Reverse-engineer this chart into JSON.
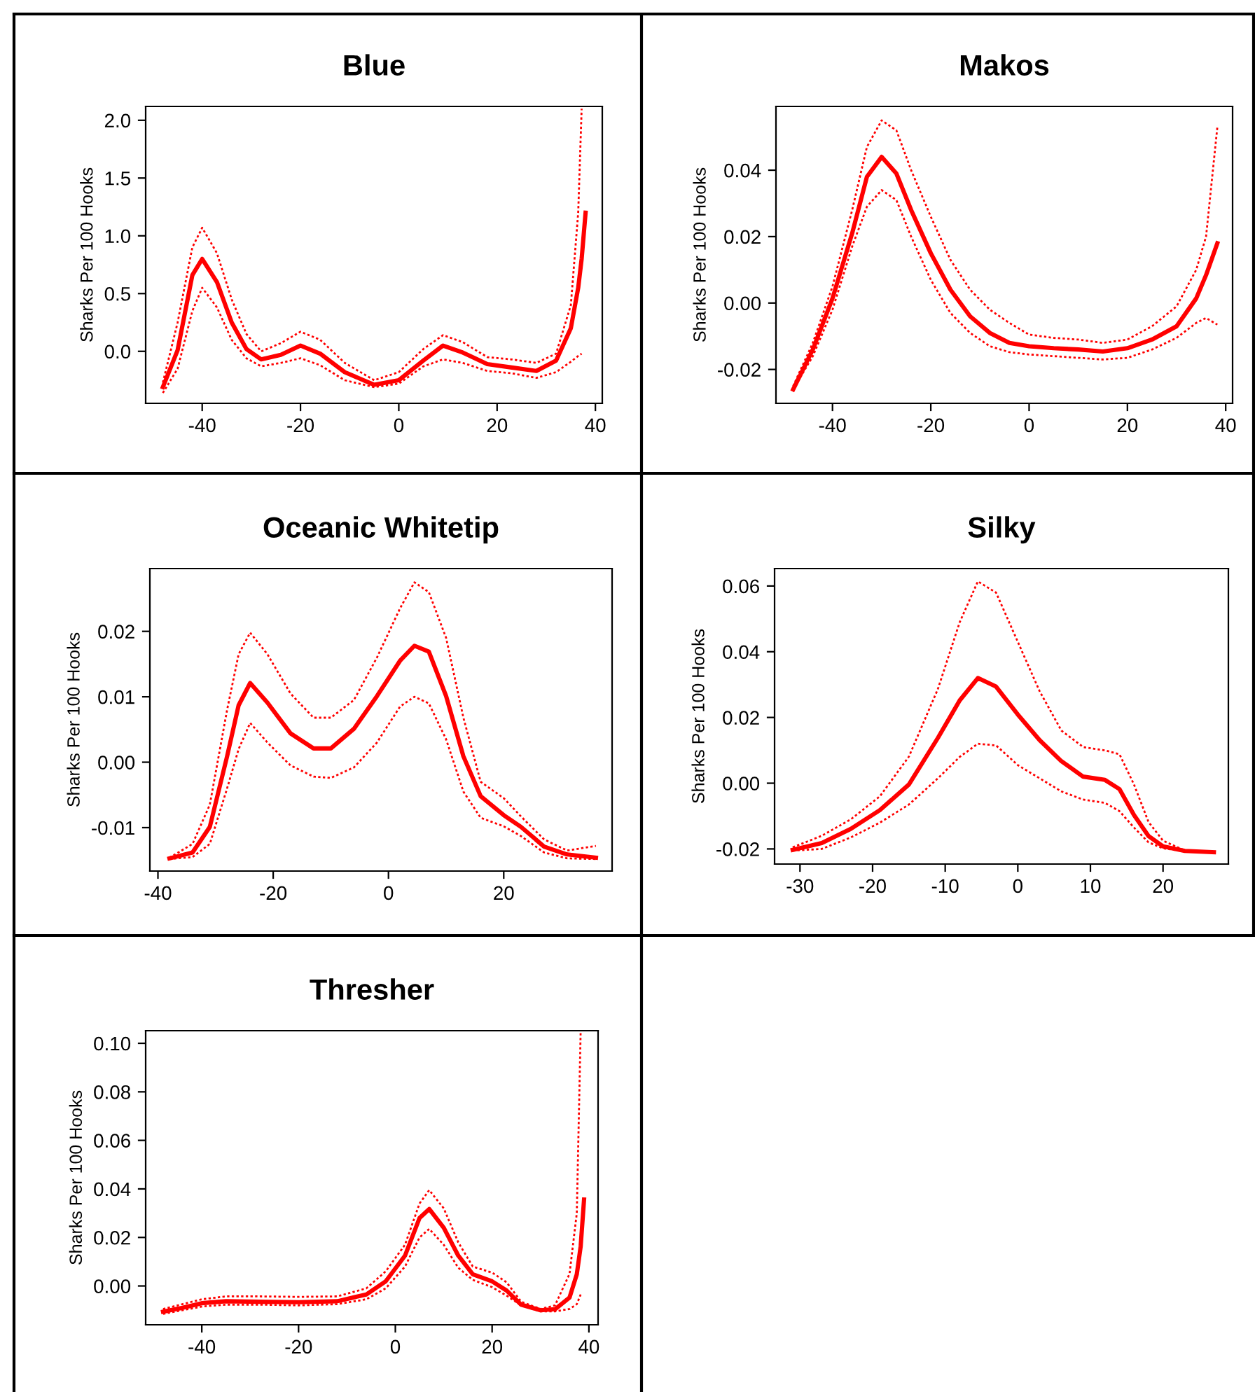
{
  "chart_data": [
    {
      "type": "line",
      "title": "Blue",
      "ylabel": "Sharks Per 100 Hooks",
      "xlim": [
        -51.5,
        41.4
      ],
      "ylim": [
        -0.45,
        2.12
      ],
      "xticks": [
        -40,
        -20,
        0,
        20,
        40
      ],
      "yticks": [
        {
          "value": 0,
          "label": "0.0"
        },
        {
          "value": 0.5,
          "label": "0.5"
        },
        {
          "value": 1,
          "label": "1.0"
        },
        {
          "value": 1.5,
          "label": "1.5"
        },
        {
          "value": 2,
          "label": "2.0"
        }
      ],
      "x": [
        -48,
        -45,
        -42,
        -40,
        -37,
        -34,
        -31,
        -28,
        -24,
        -20,
        -16,
        -11,
        -5,
        0,
        5,
        9,
        13,
        18,
        23,
        28,
        32,
        35,
        36.5,
        37.2,
        38
      ],
      "series": [
        {
          "color": "#ff0000",
          "line_style": "solid",
          "values": [
            -0.31,
            0.01,
            0.66,
            0.8,
            0.6,
            0.25,
            0.02,
            -0.07,
            -0.03,
            0.05,
            -0.02,
            -0.18,
            -0.29,
            -0.25,
            -0.08,
            0.05,
            -0.01,
            -0.11,
            -0.14,
            -0.17,
            -0.08,
            0.2,
            0.55,
            0.8,
            1.2
          ]
        },
        {
          "color": "#ff0000",
          "line_style": "dotted",
          "values": [
            -0.27,
            0.25,
            0.9,
            1.07,
            0.85,
            0.45,
            0.15,
            0.0,
            0.07,
            0.17,
            0.1,
            -0.1,
            -0.25,
            -0.18,
            0.02,
            0.14,
            0.08,
            -0.05,
            -0.07,
            -0.1,
            -0.02,
            0.4,
            1.2,
            2.1,
            null
          ]
        },
        {
          "color": "#ff0000",
          "line_style": "dotted",
          "values": [
            -0.36,
            -0.15,
            0.35,
            0.55,
            0.38,
            0.1,
            -0.06,
            -0.13,
            -0.1,
            -0.06,
            -0.12,
            -0.25,
            -0.31,
            -0.28,
            -0.13,
            -0.07,
            -0.1,
            -0.17,
            -0.19,
            -0.23,
            -0.18,
            -0.09,
            -0.04,
            -0.02,
            null
          ]
        }
      ]
    },
    {
      "type": "line",
      "title": "Makos",
      "ylabel": "Sharks Per 100 Hooks",
      "xlim": [
        -51.5,
        41.4
      ],
      "ylim": [
        -0.0302,
        0.0592
      ],
      "xticks": [
        -40,
        -20,
        0,
        20,
        40
      ],
      "yticks": [
        {
          "value": -0.02,
          "label": "-0.02"
        },
        {
          "value": 0,
          "label": "0.00"
        },
        {
          "value": 0.02,
          "label": "0.02"
        },
        {
          "value": 0.04,
          "label": "0.04"
        }
      ],
      "x": [
        -48,
        -44,
        -40,
        -36,
        -33,
        -30,
        -27,
        -24,
        -20,
        -16,
        -12,
        -8,
        -4,
        0,
        5,
        10,
        15,
        20,
        25,
        30,
        34,
        36,
        38.3
      ],
      "series": [
        {
          "color": "#ff0000",
          "line_style": "solid",
          "values": [
            -0.026,
            -0.014,
            0.0014,
            0.021,
            0.038,
            0.044,
            0.039,
            0.028,
            0.015,
            0.004,
            -0.004,
            -0.009,
            -0.012,
            -0.013,
            -0.0136,
            -0.014,
            -0.0146,
            -0.0136,
            -0.011,
            -0.007,
            0.0014,
            0.0084,
            0.018
          ]
        },
        {
          "color": "#ff0000",
          "line_style": "dotted",
          "values": [
            -0.025,
            -0.012,
            0.005,
            0.028,
            0.047,
            0.055,
            0.052,
            0.04,
            0.026,
            0.013,
            0.004,
            -0.002,
            -0.006,
            -0.0095,
            -0.0105,
            -0.011,
            -0.012,
            -0.011,
            -0.007,
            -0.001,
            0.01,
            0.02,
            0.053
          ]
        },
        {
          "color": "#ff0000",
          "line_style": "dotted",
          "values": [
            -0.026,
            -0.016,
            -0.002,
            0.017,
            0.029,
            0.034,
            0.031,
            0.02,
            0.007,
            -0.003,
            -0.009,
            -0.013,
            -0.0148,
            -0.0155,
            -0.016,
            -0.0165,
            -0.017,
            -0.0165,
            -0.014,
            -0.0105,
            -0.006,
            -0.0045,
            -0.0065
          ]
        }
      ]
    },
    {
      "type": "line",
      "title": "Oceanic Whitetip",
      "ylabel": "Sharks Per 100 Hooks",
      "xlim": [
        -41.4,
        38.8
      ],
      "ylim": [
        -0.01664,
        0.0296
      ],
      "xticks": [
        -40,
        -20,
        0,
        20
      ],
      "yticks": [
        {
          "value": -0.01,
          "label": "-0.01"
        },
        {
          "value": 0,
          "label": "0.00"
        },
        {
          "value": 0.01,
          "label": "0.01"
        },
        {
          "value": 0.02,
          "label": "0.02"
        }
      ],
      "x": [
        -38,
        -34,
        -31,
        -28,
        -26,
        -24,
        -21,
        -17,
        -13,
        -10,
        -6,
        -2,
        2,
        4.5,
        7,
        10,
        13,
        16,
        20,
        23,
        27,
        31,
        36
      ],
      "series": [
        {
          "color": "#ff0000",
          "line_style": "solid",
          "values": [
            -0.0147,
            -0.0138,
            -0.0099,
            0.0009,
            0.0087,
            0.0121,
            0.0091,
            0.0044,
            0.0021,
            0.0021,
            0.0051,
            0.0101,
            0.0155,
            0.0178,
            0.0169,
            0.0101,
            0.0009,
            -0.0052,
            -0.0081,
            -0.0099,
            -0.0129,
            -0.0141,
            -0.0146
          ]
        },
        {
          "color": "#ff0000",
          "line_style": "dotted",
          "values": [
            -0.0146,
            -0.0125,
            -0.0065,
            0.008,
            0.0165,
            0.0198,
            0.0165,
            0.0105,
            0.0068,
            0.0068,
            0.0095,
            0.016,
            0.0235,
            0.0275,
            0.026,
            0.019,
            0.0068,
            -0.003,
            -0.0055,
            -0.0083,
            -0.0118,
            -0.0135,
            -0.0128
          ]
        },
        {
          "color": "#ff0000",
          "line_style": "dotted",
          "values": [
            -0.0148,
            -0.0145,
            -0.0125,
            -0.004,
            0.002,
            0.006,
            0.003,
            -0.0005,
            -0.0022,
            -0.0024,
            -0.0008,
            0.003,
            0.0085,
            0.01,
            0.009,
            0.0035,
            -0.0045,
            -0.0085,
            -0.0098,
            -0.0113,
            -0.0138,
            -0.0147,
            -0.0148
          ]
        }
      ]
    },
    {
      "type": "line",
      "title": "Silky",
      "ylabel": "Sharks Per 100 Hooks",
      "xlim": [
        -33.5,
        29.0
      ],
      "ylim": [
        -0.0246,
        0.0653
      ],
      "xticks": [
        -30,
        -20,
        -10,
        0,
        10,
        20
      ],
      "yticks": [
        {
          "value": -0.02,
          "label": "-0.02"
        },
        {
          "value": 0,
          "label": "0.00"
        },
        {
          "value": 0.02,
          "label": "0.02"
        },
        {
          "value": 0.04,
          "label": "0.04"
        },
        {
          "value": 0.06,
          "label": "0.06"
        }
      ],
      "x": [
        -31,
        -27,
        -23,
        -19,
        -15,
        -11,
        -8,
        -5.5,
        -3,
        0,
        3,
        6,
        9,
        12,
        14,
        16,
        18,
        20,
        23,
        27
      ],
      "series": [
        {
          "color": "#ff0000",
          "line_style": "solid",
          "values": [
            -0.0203,
            -0.0182,
            -0.0139,
            -0.0082,
            -0.0004,
            0.0138,
            0.0252,
            0.032,
            0.0294,
            0.0209,
            0.0131,
            0.0067,
            0.002,
            0.001,
            -0.0018,
            -0.0097,
            -0.0161,
            -0.0192,
            -0.0206,
            -0.021
          ]
        },
        {
          "color": "#ff0000",
          "line_style": "dotted",
          "values": [
            -0.0195,
            -0.016,
            -0.011,
            -0.004,
            0.0081,
            0.0287,
            0.049,
            0.0614,
            0.058,
            0.043,
            0.028,
            0.016,
            0.011,
            0.01,
            0.0088,
            -0.0004,
            -0.0118,
            -0.0175,
            -0.0205,
            -0.021
          ]
        },
        {
          "color": "#ff0000",
          "line_style": "dotted",
          "values": [
            -0.0205,
            -0.02,
            -0.0165,
            -0.012,
            -0.0065,
            0.0015,
            0.008,
            0.012,
            0.0115,
            0.0055,
            0.0015,
            -0.0025,
            -0.005,
            -0.006,
            -0.0085,
            -0.0135,
            -0.018,
            -0.0198,
            -0.0207,
            -0.021
          ]
        }
      ]
    },
    {
      "type": "line",
      "title": "Thresher",
      "ylabel": "Sharks Per 100 Hooks",
      "xlim": [
        -51.6,
        41.9
      ],
      "ylim": [
        -0.016,
        0.1052
      ],
      "xticks": [
        -40,
        -20,
        0,
        20,
        40
      ],
      "yticks": [
        {
          "value": 0,
          "label": "0.00"
        },
        {
          "value": 0.02,
          "label": "0.02"
        },
        {
          "value": 0.04,
          "label": "0.04"
        },
        {
          "value": 0.06,
          "label": "0.06"
        },
        {
          "value": 0.08,
          "label": "0.08"
        },
        {
          "value": 0.1,
          "label": "0.10"
        }
      ],
      "x": [
        -48,
        -44,
        -40,
        -35,
        -28,
        -20,
        -12,
        -6,
        -2,
        2,
        5,
        7,
        10,
        13,
        16,
        20,
        23,
        26,
        30,
        33,
        36,
        37.5,
        38.3,
        39
      ],
      "series": [
        {
          "color": "#ff0000",
          "line_style": "solid",
          "values": [
            -0.0106,
            -0.009,
            -0.0071,
            -0.0063,
            -0.0065,
            -0.0067,
            -0.0063,
            -0.0035,
            0.0019,
            0.0125,
            0.028,
            0.0317,
            0.024,
            0.0125,
            0.0048,
            0.0019,
            -0.0019,
            -0.0077,
            -0.01,
            -0.0096,
            -0.0048,
            0.0048,
            0.0163,
            0.0356
          ]
        },
        {
          "color": "#ff0000",
          "line_style": "dotted",
          "values": [
            -0.0095,
            -0.0075,
            -0.0055,
            -0.0043,
            -0.0043,
            -0.0045,
            -0.0043,
            -0.001,
            0.006,
            0.017,
            0.034,
            0.0395,
            0.032,
            0.018,
            0.008,
            0.0055,
            0.0015,
            -0.0065,
            -0.0095,
            -0.008,
            0.005,
            0.03,
            0.105,
            null
          ]
        },
        {
          "color": "#ff0000",
          "line_style": "dotted",
          "values": [
            -0.0115,
            -0.01,
            -0.0085,
            -0.0077,
            -0.0077,
            -0.008,
            -0.0075,
            -0.0055,
            -0.001,
            0.008,
            0.02,
            0.0235,
            0.017,
            0.0075,
            0.0025,
            -0.0005,
            -0.004,
            -0.008,
            -0.0105,
            -0.0105,
            -0.0095,
            -0.0075,
            -0.0035,
            null
          ]
        }
      ]
    }
  ]
}
